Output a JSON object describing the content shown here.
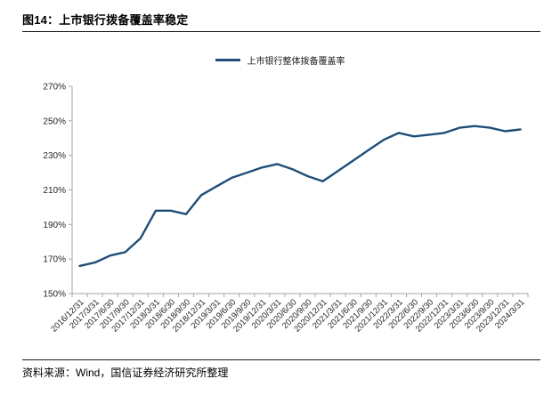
{
  "header": {
    "figure_label": "图14：",
    "figure_title": "上市银行拨备覆盖率稳定"
  },
  "chart_data": {
    "type": "line",
    "title": "图14：上市银行拨备覆盖率稳定",
    "xlabel": "",
    "ylabel": "",
    "unit": "%",
    "legend_position": "top-center",
    "grid": false,
    "ylim": [
      150,
      270
    ],
    "ytick_step": 20,
    "yticks": [
      "150%",
      "170%",
      "190%",
      "210%",
      "230%",
      "250%",
      "270%"
    ],
    "categories": [
      "2016/12/31",
      "2017/3/31",
      "2017/6/30",
      "2017/9/30",
      "2017/12/31",
      "2018/3/31",
      "2018/6/30",
      "2018/9/30",
      "2018/12/31",
      "2019/3/31",
      "2019/6/30",
      "2019/9/30",
      "2019/12/31",
      "2020/3/31",
      "2020/6/30",
      "2020/9/30",
      "2020/12/31",
      "2021/3/31",
      "2021/6/30",
      "2021/9/30",
      "2021/12/31",
      "2022/3/31",
      "2022/6/30",
      "2022/9/30",
      "2022/12/31",
      "2023/3/31",
      "2023/6/30",
      "2023/9/30",
      "2023/12/31",
      "2024/3/31"
    ],
    "series": [
      {
        "name": "上市银行整体拨备覆盖率",
        "values": [
          166,
          168,
          172,
          174,
          182,
          198,
          198,
          196,
          207,
          212,
          217,
          220,
          223,
          225,
          222,
          218,
          215,
          221,
          227,
          233,
          239,
          243,
          241,
          242,
          243,
          246,
          247,
          246,
          244,
          245
        ]
      }
    ],
    "line_color": "#1F4E79",
    "axis_color": "#A6A6A6"
  },
  "footer": {
    "source": "资料来源：Wind，国信证券经济研究所整理"
  }
}
